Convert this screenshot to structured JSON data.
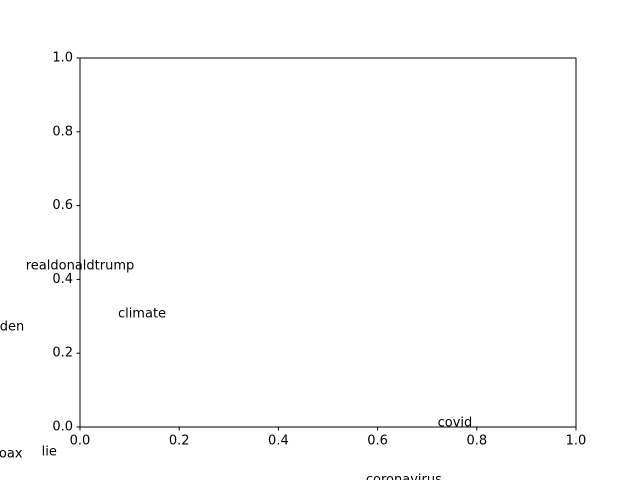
{
  "chart_data": {
    "type": "text",
    "labels": [
      "realdonaldtrump",
      "climate",
      "biden",
      "covid",
      "hoax",
      "lie",
      "coronavirus"
    ],
    "x": [
      0.0,
      0.125,
      -0.149,
      0.756,
      -0.148,
      -0.062,
      0.653
    ],
    "y": [
      0.436,
      0.306,
      0.271,
      0.011,
      -0.073,
      -0.068,
      -0.144
    ],
    "xlim": [
      0,
      1
    ],
    "ylim": [
      0,
      1
    ],
    "xticks": [
      {
        "value": 0,
        "label": "0.0"
      },
      {
        "value": 0.2,
        "label": "0.2"
      },
      {
        "value": 0.4,
        "label": "0.4"
      },
      {
        "value": 0.6,
        "label": "0.6"
      },
      {
        "value": 0.8,
        "label": "0.8"
      },
      {
        "value": 1,
        "label": "1.0"
      }
    ],
    "yticks": [
      {
        "value": 0,
        "label": "0.0"
      },
      {
        "value": 0.2,
        "label": "0.2"
      },
      {
        "value": 0.4,
        "label": "0.4"
      },
      {
        "value": 0.6,
        "label": "0.6"
      },
      {
        "value": 0.8,
        "label": "0.8"
      },
      {
        "value": 1,
        "label": "1.0"
      }
    ],
    "grid": false
  }
}
